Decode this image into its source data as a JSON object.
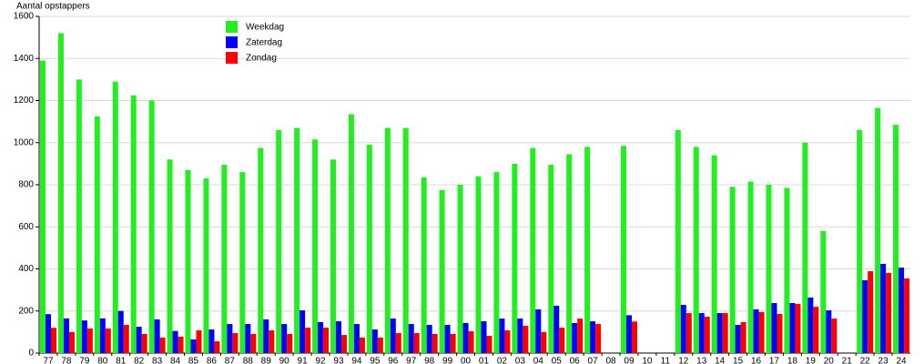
{
  "chart_data": {
    "type": "bar",
    "y_label": "Aantal opstappers",
    "categories": [
      "77",
      "78",
      "79",
      "80",
      "81",
      "82",
      "83",
      "84",
      "85",
      "86",
      "87",
      "88",
      "89",
      "90",
      "91",
      "92",
      "93",
      "94",
      "95",
      "96",
      "97",
      "98",
      "99",
      "00",
      "01",
      "02",
      "03",
      "04",
      "05",
      "06",
      "07",
      "08",
      "09",
      "10",
      "11",
      "12",
      "13",
      "14",
      "15",
      "16",
      "17",
      "18",
      "19",
      "20",
      "21",
      "22",
      "23",
      "24"
    ],
    "series": [
      {
        "name": "Weekdag",
        "color": "#22ee22",
        "values": [
          1390,
          1520,
          1300,
          1125,
          1290,
          1225,
          1200,
          920,
          870,
          830,
          895,
          860,
          975,
          1060,
          1070,
          1015,
          920,
          1135,
          990,
          1070,
          1070,
          835,
          775,
          800,
          840,
          860,
          900,
          975,
          895,
          945,
          980,
          null,
          985,
          null,
          null,
          1060,
          980,
          940,
          790,
          815,
          800,
          785,
          1000,
          580,
          null,
          1060,
          1165,
          1085
        ]
      },
      {
        "name": "Zaterdag",
        "color": "#0000ff",
        "values": [
          185,
          165,
          155,
          165,
          200,
          125,
          160,
          105,
          65,
          112,
          138,
          138,
          160,
          138,
          203,
          147,
          151,
          138,
          112,
          164,
          138,
          134,
          134,
          143,
          151,
          164,
          164,
          208,
          225,
          143,
          151,
          null,
          180,
          null,
          null,
          229,
          190,
          190,
          134,
          208,
          238,
          238,
          264,
          203,
          null,
          346,
          424,
          406
        ]
      },
      {
        "name": "Zondag",
        "color": "#ff0000",
        "values": [
          120,
          100,
          117,
          117,
          134,
          91,
          74,
          78,
          108,
          56,
          95,
          91,
          108,
          91,
          121,
          121,
          86,
          74,
          74,
          95,
          95,
          91,
          91,
          104,
          82,
          108,
          130,
          100,
          121,
          164,
          138,
          null,
          150,
          null,
          null,
          190,
          173,
          190,
          147,
          195,
          186,
          234,
          220,
          164,
          null,
          389,
          381,
          355
        ]
      }
    ],
    "ylim": [
      0,
      1600
    ],
    "yticks": [
      0,
      200,
      400,
      600,
      800,
      1000,
      1200,
      1400,
      1600
    ],
    "grid": true,
    "legend": "top-left"
  }
}
